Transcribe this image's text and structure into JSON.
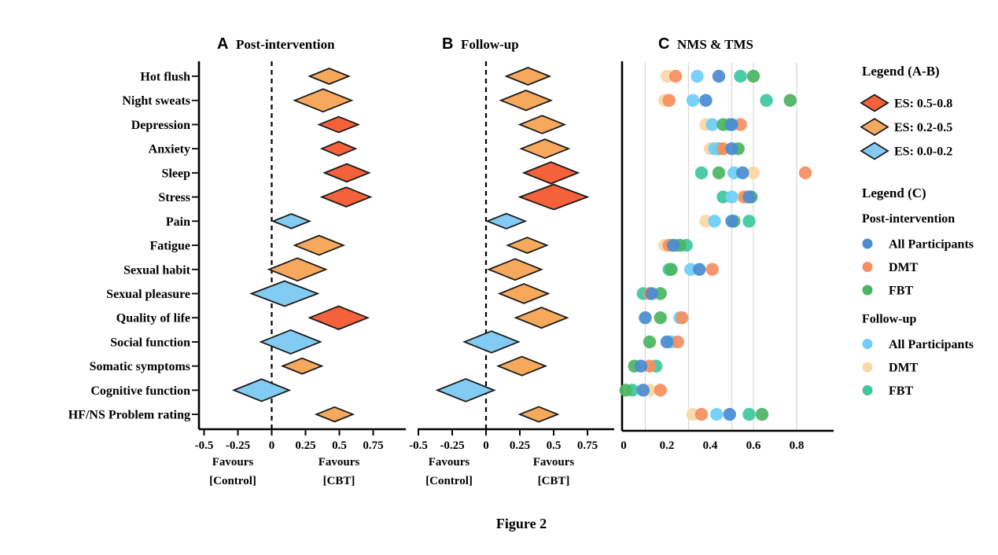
{
  "caption": "Figure 2",
  "colors": {
    "es_bands": {
      "0.5-0.8": "#f4613b",
      "0.2-0.5": "#f6a85c",
      "0.0-0.2": "#82cbf2"
    },
    "gridline": "#d8d8d8",
    "axis": "#000000",
    "diamond_stroke": "#1a1a1a"
  },
  "chart_data": [
    {
      "id": "A",
      "type": "forest-diamond",
      "title_letter": "A",
      "title": "Post-intervention",
      "categories": [
        "Hot flush",
        "Night sweats",
        "Depression",
        "Anxiety",
        "Sleep",
        "Stress",
        "Pain",
        "Fatigue",
        "Sexual habit",
        "Sexual pleasure",
        "Quality of life",
        "Social function",
        "Somatic symptoms",
        "Cognitive function",
        "HF/NS Problem rating"
      ],
      "x_ticks": [
        -0.5,
        -0.25,
        0,
        0.25,
        0.5,
        0.75
      ],
      "x_tick_labels": [
        "-0.5",
        "-0.25",
        "0",
        "0.25",
        "0.5",
        "0.75"
      ],
      "xlim": [
        -0.55,
        0.95
      ],
      "zero_line": "dashed",
      "favours_left": [
        "Favours",
        "[Control]"
      ],
      "favours_right": [
        "Favours",
        "[CBT]"
      ],
      "diamonds": [
        {
          "center": 0.42,
          "lo": 0.28,
          "hi": 0.57,
          "es_band": "0.2-0.5"
        },
        {
          "center": 0.38,
          "lo": 0.17,
          "hi": 0.59,
          "es_band": "0.2-0.5"
        },
        {
          "center": 0.49,
          "lo": 0.35,
          "hi": 0.64,
          "es_band": "0.5-0.8"
        },
        {
          "center": 0.49,
          "lo": 0.37,
          "hi": 0.62,
          "es_band": "0.5-0.8"
        },
        {
          "center": 0.56,
          "lo": 0.39,
          "hi": 0.72,
          "es_band": "0.5-0.8"
        },
        {
          "center": 0.55,
          "lo": 0.37,
          "hi": 0.73,
          "es_band": "0.5-0.8"
        },
        {
          "center": 0.15,
          "lo": 0.01,
          "hi": 0.28,
          "es_band": "0.0-0.2"
        },
        {
          "center": 0.35,
          "lo": 0.17,
          "hi": 0.53,
          "es_band": "0.2-0.5"
        },
        {
          "center": 0.19,
          "lo": -0.02,
          "hi": 0.4,
          "es_band": "0.2-0.5"
        },
        {
          "center": 0.1,
          "lo": -0.15,
          "hi": 0.34,
          "es_band": "0.0-0.2"
        },
        {
          "center": 0.5,
          "lo": 0.28,
          "hi": 0.71,
          "es_band": "0.5-0.8"
        },
        {
          "center": 0.14,
          "lo": -0.08,
          "hi": 0.36,
          "es_band": "0.0-0.2"
        },
        {
          "center": 0.23,
          "lo": 0.08,
          "hi": 0.37,
          "es_band": "0.2-0.5"
        },
        {
          "center": -0.08,
          "lo": -0.28,
          "hi": 0.13,
          "es_band": "0.0-0.2"
        },
        {
          "center": 0.47,
          "lo": 0.33,
          "hi": 0.6,
          "es_band": "0.2-0.5"
        }
      ]
    },
    {
      "id": "B",
      "type": "forest-diamond",
      "title_letter": "B",
      "title": "Follow-up",
      "categories": [
        "Hot flush",
        "Night sweats",
        "Depression",
        "Anxiety",
        "Sleep",
        "Stress",
        "Pain",
        "Fatigue",
        "Sexual habit",
        "Sexual pleasure",
        "Quality of life",
        "Social function",
        "Somatic symptoms",
        "Cognitive function",
        "HF/NS Problem rating"
      ],
      "x_ticks": [
        -0.5,
        -0.25,
        0,
        0.25,
        0.5,
        0.75
      ],
      "x_tick_labels": [
        "-0.5",
        "-0.25",
        "0",
        "0.25",
        "0.5",
        "0.75"
      ],
      "xlim": [
        -0.55,
        0.95
      ],
      "zero_line": "dashed",
      "favours_left": [
        "Favours",
        "[Control]"
      ],
      "favours_right": [
        "Favours",
        "[CBT]"
      ],
      "diamonds": [
        {
          "center": 0.31,
          "lo": 0.15,
          "hi": 0.47,
          "es_band": "0.2-0.5"
        },
        {
          "center": 0.3,
          "lo": 0.11,
          "hi": 0.48,
          "es_band": "0.2-0.5"
        },
        {
          "center": 0.42,
          "lo": 0.25,
          "hi": 0.58,
          "es_band": "0.2-0.5"
        },
        {
          "center": 0.44,
          "lo": 0.26,
          "hi": 0.61,
          "es_band": "0.2-0.5"
        },
        {
          "center": 0.48,
          "lo": 0.28,
          "hi": 0.68,
          "es_band": "0.5-0.8"
        },
        {
          "center": 0.5,
          "lo": 0.25,
          "hi": 0.75,
          "es_band": "0.5-0.8"
        },
        {
          "center": 0.15,
          "lo": 0.01,
          "hi": 0.29,
          "es_band": "0.0-0.2"
        },
        {
          "center": 0.3,
          "lo": 0.16,
          "hi": 0.45,
          "es_band": "0.2-0.5"
        },
        {
          "center": 0.21,
          "lo": 0.02,
          "hi": 0.41,
          "es_band": "0.2-0.5"
        },
        {
          "center": 0.28,
          "lo": 0.1,
          "hi": 0.46,
          "es_band": "0.2-0.5"
        },
        {
          "center": 0.41,
          "lo": 0.22,
          "hi": 0.6,
          "es_band": "0.2-0.5"
        },
        {
          "center": 0.04,
          "lo": -0.16,
          "hi": 0.24,
          "es_band": "0.0-0.2"
        },
        {
          "center": 0.26,
          "lo": 0.09,
          "hi": 0.44,
          "es_band": "0.2-0.5"
        },
        {
          "center": -0.15,
          "lo": -0.36,
          "hi": 0.06,
          "es_band": "0.0-0.2"
        },
        {
          "center": 0.39,
          "lo": 0.25,
          "hi": 0.53,
          "es_band": "0.2-0.5"
        }
      ]
    },
    {
      "id": "C",
      "type": "scatter",
      "title_letter": "C",
      "title": "NMS & TMS",
      "categories": [
        "Hot flush",
        "Night sweats",
        "Depression",
        "Anxiety",
        "Sleep",
        "Stress",
        "Pain",
        "Fatigue",
        "Sexual habit",
        "Sexual pleasure",
        "Quality of life",
        "Social function",
        "Somatic symptoms",
        "Cognitive function",
        "HF/NS Problem rating"
      ],
      "x_ticks": [
        0,
        0.2,
        0.4,
        0.6,
        0.8
      ],
      "x_tick_labels": [
        "0",
        "0.2",
        "0.4",
        "0.6",
        "0.8"
      ],
      "xlim": [
        0,
        0.97
      ],
      "gridlines": [
        0.1,
        0.3,
        0.5,
        0.6,
        0.8
      ],
      "series": [
        {
          "key": "post_all",
          "name": "Post-intervention All Participants",
          "color": "#4a8cd2",
          "values": [
            0.44,
            0.38,
            0.5,
            0.5,
            0.55,
            0.58,
            0.5,
            0.23,
            0.35,
            0.13,
            0.1,
            0.2,
            0.08,
            0.09,
            0.49
          ]
        },
        {
          "key": "post_dmt",
          "name": "Post-intervention DMT",
          "color": "#f58e60",
          "values": [
            0.24,
            0.21,
            0.54,
            0.46,
            0.84,
            0.56,
            null,
            0.21,
            0.41,
            0.12,
            0.27,
            0.25,
            0.12,
            0.17,
            0.36
          ]
        },
        {
          "key": "post_fbt",
          "name": "Post-intervention FBT",
          "color": "#4cb563",
          "values": [
            0.6,
            0.77,
            0.46,
            0.53,
            0.44,
            0.59,
            0.51,
            0.26,
            0.22,
            0.17,
            0.17,
            0.12,
            0.05,
            0.01,
            0.64
          ]
        },
        {
          "key": "fu_all",
          "name": "Follow-up All Participants",
          "color": "#6ecff6",
          "values": [
            0.34,
            0.32,
            0.41,
            0.42,
            0.51,
            0.5,
            0.42,
            0.24,
            0.31,
            null,
            0.26,
            0.22,
            null,
            null,
            0.43
          ]
        },
        {
          "key": "fu_dmt",
          "name": "Follow-up DMT",
          "color": "#fad7a6",
          "values": [
            0.2,
            0.19,
            0.38,
            0.4,
            0.6,
            0.55,
            0.38,
            0.19,
            null,
            null,
            null,
            null,
            null,
            0.12,
            0.32
          ]
        },
        {
          "key": "fu_fbt",
          "name": "Follow-up FBT",
          "color": "#3ec7a0",
          "values": [
            0.54,
            0.66,
            0.49,
            0.44,
            0.36,
            0.46,
            0.58,
            0.29,
            0.21,
            0.09,
            null,
            null,
            0.15,
            0.04,
            0.58
          ]
        }
      ]
    }
  ],
  "legend_ab": {
    "title": "Legend (A-B)",
    "items": [
      {
        "label": "ES: 0.5-0.8",
        "color": "#f4613b"
      },
      {
        "label": "ES: 0.2-0.5",
        "color": "#f6a85c"
      },
      {
        "label": "ES: 0.0-0.2",
        "color": "#82cbf2"
      }
    ]
  },
  "legend_c": {
    "title": "Legend (C)",
    "groups": [
      {
        "heading": "Post-intervention",
        "items": [
          {
            "label": "All Participants",
            "key": "post_all",
            "color": "#4a8cd2"
          },
          {
            "label": "DMT",
            "key": "post_dmt",
            "color": "#f58e60"
          },
          {
            "label": "FBT",
            "key": "post_fbt",
            "color": "#4cb563"
          }
        ]
      },
      {
        "heading": "Follow-up",
        "items": [
          {
            "label": "All Participants",
            "key": "fu_all",
            "color": "#6ecff6"
          },
          {
            "label": "DMT",
            "key": "fu_dmt",
            "color": "#fad7a6"
          },
          {
            "label": "FBT",
            "key": "fu_fbt",
            "color": "#3ec7a0"
          }
        ]
      }
    ]
  }
}
